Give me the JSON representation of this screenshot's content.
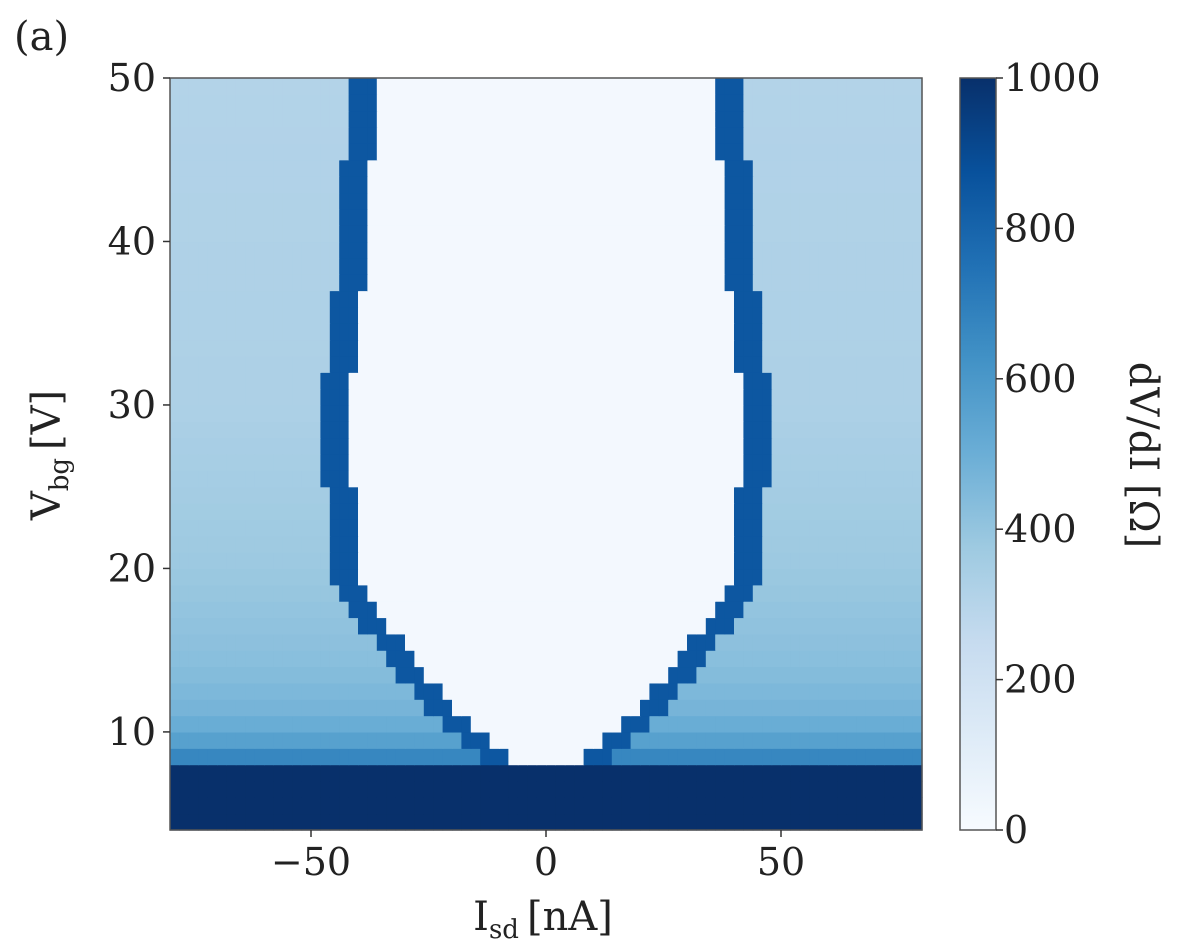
{
  "chart_data": {
    "type": "heatmap",
    "panel_label": "(a)",
    "xlabel": {
      "main": "I",
      "sub": "sd",
      "unit": "[nA]"
    },
    "ylabel": {
      "main": "V",
      "sub": "bg",
      "unit": "[V]"
    },
    "colorbar_label": "dV/dI [Ω]",
    "xlim": [
      -80,
      80
    ],
    "ylim": [
      4,
      50
    ],
    "x_ticks": [
      {
        "value": -50,
        "label": "−50"
      },
      {
        "value": 0,
        "label": "0"
      },
      {
        "value": 50,
        "label": "50"
      }
    ],
    "y_ticks": [
      {
        "value": 10,
        "label": "10"
      },
      {
        "value": 20,
        "label": "20"
      },
      {
        "value": 30,
        "label": "30"
      },
      {
        "value": 40,
        "label": "40"
      },
      {
        "value": 50,
        "label": "50"
      }
    ],
    "colorbar": {
      "range": [
        0,
        1000
      ],
      "ticks": [
        {
          "value": 0,
          "label": "0"
        },
        {
          "value": 200,
          "label": "200"
        },
        {
          "value": 400,
          "label": "400"
        },
        {
          "value": 600,
          "label": "600"
        },
        {
          "value": 800,
          "label": "800"
        },
        {
          "value": 1000,
          "label": "1000"
        }
      ],
      "colormap": "Blues",
      "colors": [
        "#f7fbff",
        "#deebf7",
        "#c6dbef",
        "#9ecae1",
        "#6baed6",
        "#4292c6",
        "#2171b5",
        "#08519c",
        "#08306b"
      ]
    },
    "regions": {
      "supercurrent_boundary": [
        {
          "V": 7.0,
          "Ic": 1
        },
        {
          "V": 8.0,
          "Ic": 5
        },
        {
          "V": 9.0,
          "Ic": 10
        },
        {
          "V": 10.0,
          "Ic": 14
        },
        {
          "V": 12.0,
          "Ic": 21
        },
        {
          "V": 14.0,
          "Ic": 27
        },
        {
          "V": 16.0,
          "Ic": 32
        },
        {
          "V": 18.0,
          "Ic": 37
        },
        {
          "V": 20.0,
          "Ic": 41
        },
        {
          "V": 25.0,
          "Ic": 41
        },
        {
          "V": 30.0,
          "Ic": 42
        },
        {
          "V": 35.0,
          "Ic": 40
        },
        {
          "V": 40.0,
          "Ic": 38
        },
        {
          "V": 45.0,
          "Ic": 37
        },
        {
          "V": 50.0,
          "Ic": 36
        }
      ],
      "peak_width_nA": 6,
      "peak_value": 850,
      "inner_value": 20,
      "low_gate_cutoff_V": 8.2,
      "low_gate_value": 1000,
      "normal_state_profile": [
        {
          "V": 8.2,
          "value": 700
        },
        {
          "V": 9.5,
          "value": 560
        },
        {
          "V": 11.0,
          "value": 480
        },
        {
          "V": 14.0,
          "value": 430
        },
        {
          "V": 20.0,
          "value": 380
        },
        {
          "V": 30.0,
          "value": 330
        },
        {
          "V": 50.0,
          "value": 310
        }
      ]
    }
  }
}
